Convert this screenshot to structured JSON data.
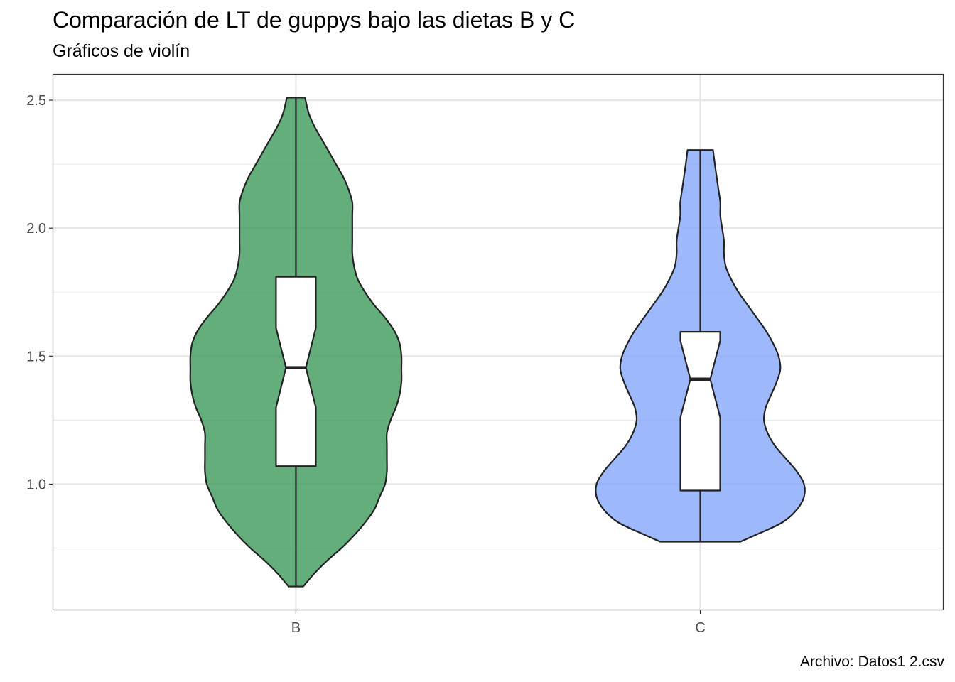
{
  "chart_data": {
    "type": "violin",
    "title": "Comparación de LT de guppys bajo las dietas B y C",
    "subtitle": "Gráficos de violín",
    "caption": "Archivo: Datos1 2.csv",
    "xlabel": "",
    "ylabel": "",
    "categories": [
      "B",
      "C"
    ],
    "colors": [
      "#3d9a5a",
      "#84a8fb"
    ],
    "ylim": [
      0.51,
      2.6
    ],
    "yticks": [
      1.0,
      1.5,
      2.0,
      2.5
    ],
    "ytick_labels": [
      "1.0",
      "1.5",
      "2.0",
      "2.5"
    ],
    "grid": true,
    "legend": "none",
    "violins": [
      {
        "name": "B",
        "min": 0.6,
        "max": 2.51,
        "density": [
          [
            0.6,
            0.04
          ],
          [
            0.65,
            0.1
          ],
          [
            0.7,
            0.17
          ],
          [
            0.75,
            0.25
          ],
          [
            0.8,
            0.32
          ],
          [
            0.85,
            0.38
          ],
          [
            0.9,
            0.43
          ],
          [
            0.95,
            0.46
          ],
          [
            1.0,
            0.49
          ],
          [
            1.05,
            0.5
          ],
          [
            1.1,
            0.5
          ],
          [
            1.15,
            0.5
          ],
          [
            1.2,
            0.5
          ],
          [
            1.25,
            0.52
          ],
          [
            1.3,
            0.55
          ],
          [
            1.35,
            0.57
          ],
          [
            1.4,
            0.58
          ],
          [
            1.45,
            0.58
          ],
          [
            1.5,
            0.58
          ],
          [
            1.55,
            0.57
          ],
          [
            1.6,
            0.54
          ],
          [
            1.65,
            0.49
          ],
          [
            1.7,
            0.43
          ],
          [
            1.75,
            0.38
          ],
          [
            1.8,
            0.34
          ],
          [
            1.85,
            0.32
          ],
          [
            1.9,
            0.31
          ],
          [
            1.95,
            0.31
          ],
          [
            2.0,
            0.31
          ],
          [
            2.05,
            0.31
          ],
          [
            2.1,
            0.31
          ],
          [
            2.15,
            0.29
          ],
          [
            2.2,
            0.26
          ],
          [
            2.25,
            0.22
          ],
          [
            2.3,
            0.18
          ],
          [
            2.35,
            0.14
          ],
          [
            2.4,
            0.1
          ],
          [
            2.45,
            0.07
          ],
          [
            2.51,
            0.05
          ]
        ],
        "box": {
          "q1": 1.07,
          "median": 1.455,
          "q3": 1.81,
          "notch_low": 1.3,
          "notch_high": 1.61
        }
      },
      {
        "name": "C",
        "min": 0.775,
        "max": 2.305,
        "density": [
          [
            0.775,
            0.22
          ],
          [
            0.8,
            0.3
          ],
          [
            0.85,
            0.45
          ],
          [
            0.9,
            0.53
          ],
          [
            0.95,
            0.57
          ],
          [
            1.0,
            0.57
          ],
          [
            1.05,
            0.53
          ],
          [
            1.1,
            0.47
          ],
          [
            1.15,
            0.41
          ],
          [
            1.2,
            0.37
          ],
          [
            1.25,
            0.35
          ],
          [
            1.3,
            0.36
          ],
          [
            1.35,
            0.39
          ],
          [
            1.4,
            0.42
          ],
          [
            1.45,
            0.44
          ],
          [
            1.5,
            0.43
          ],
          [
            1.55,
            0.4
          ],
          [
            1.6,
            0.36
          ],
          [
            1.65,
            0.31
          ],
          [
            1.7,
            0.26
          ],
          [
            1.75,
            0.21
          ],
          [
            1.8,
            0.17
          ],
          [
            1.85,
            0.14
          ],
          [
            1.9,
            0.13
          ],
          [
            1.95,
            0.13
          ],
          [
            2.0,
            0.12
          ],
          [
            2.05,
            0.11
          ],
          [
            2.1,
            0.11
          ],
          [
            2.15,
            0.1
          ],
          [
            2.2,
            0.09
          ],
          [
            2.25,
            0.08
          ],
          [
            2.305,
            0.07
          ]
        ],
        "box": {
          "q1": 0.975,
          "median": 1.41,
          "q3": 1.595,
          "notch_low": 1.26,
          "notch_high": 1.56
        }
      }
    ]
  }
}
